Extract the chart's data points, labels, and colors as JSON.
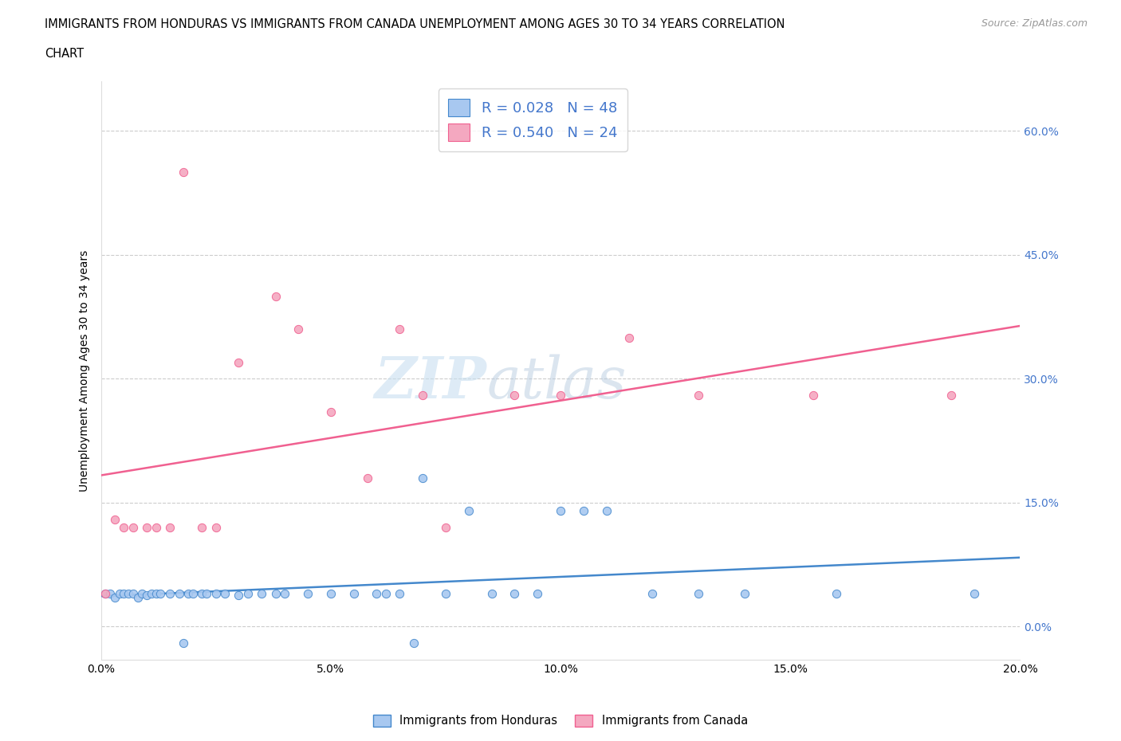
{
  "title_line1": "IMMIGRANTS FROM HONDURAS VS IMMIGRANTS FROM CANADA UNEMPLOYMENT AMONG AGES 30 TO 34 YEARS CORRELATION",
  "title_line2": "CHART",
  "source": "Source: ZipAtlas.com",
  "ylabel": "Unemployment Among Ages 30 to 34 years",
  "xlim": [
    0.0,
    0.2
  ],
  "ylim": [
    -0.04,
    0.66
  ],
  "xticks": [
    0.0,
    0.05,
    0.1,
    0.15,
    0.2
  ],
  "xtick_labels": [
    "0.0%",
    "5.0%",
    "10.0%",
    "15.0%",
    "20.0%"
  ],
  "yticks": [
    0.0,
    0.15,
    0.3,
    0.45,
    0.6
  ],
  "ytick_labels": [
    "0.0%",
    "15.0%",
    "30.0%",
    "45.0%",
    "60.0%"
  ],
  "watermark_ZIP": "ZIP",
  "watermark_atlas": "atlas",
  "legend_label1": "Immigrants from Honduras",
  "legend_label2": "Immigrants from Canada",
  "R1": "0.028",
  "N1": "48",
  "R2": "0.540",
  "N2": "24",
  "color_honduras": "#a8c8f0",
  "color_canada": "#f4a8c0",
  "color_trend_honduras": "#4488cc",
  "color_trend_canada": "#f06090",
  "color_blue_text": "#4477cc",
  "background_color": "#ffffff",
  "grid_color": "#cccccc",
  "honduras_x": [
    0.001,
    0.002,
    0.003,
    0.004,
    0.005,
    0.006,
    0.007,
    0.008,
    0.009,
    0.01,
    0.011,
    0.012,
    0.013,
    0.015,
    0.017,
    0.018,
    0.019,
    0.02,
    0.022,
    0.023,
    0.025,
    0.027,
    0.03,
    0.032,
    0.035,
    0.038,
    0.04,
    0.045,
    0.05,
    0.055,
    0.06,
    0.062,
    0.065,
    0.068,
    0.07,
    0.075,
    0.08,
    0.085,
    0.09,
    0.095,
    0.1,
    0.105,
    0.11,
    0.12,
    0.13,
    0.14,
    0.16,
    0.19
  ],
  "honduras_y": [
    0.04,
    0.04,
    0.035,
    0.04,
    0.04,
    0.04,
    0.04,
    0.035,
    0.04,
    0.038,
    0.04,
    0.04,
    0.04,
    0.04,
    0.04,
    -0.02,
    0.04,
    0.04,
    0.04,
    0.04,
    0.04,
    0.04,
    0.038,
    0.04,
    0.04,
    0.04,
    0.04,
    0.04,
    0.04,
    0.04,
    0.04,
    0.04,
    0.04,
    -0.02,
    0.18,
    0.04,
    0.14,
    0.04,
    0.04,
    0.04,
    0.14,
    0.14,
    0.14,
    0.04,
    0.04,
    0.04,
    0.04,
    0.04
  ],
  "canada_x": [
    0.001,
    0.003,
    0.005,
    0.007,
    0.01,
    0.012,
    0.015,
    0.018,
    0.022,
    0.025,
    0.03,
    0.038,
    0.043,
    0.05,
    0.058,
    0.065,
    0.07,
    0.075,
    0.09,
    0.1,
    0.115,
    0.13,
    0.155,
    0.185
  ],
  "canada_y": [
    0.04,
    0.13,
    0.12,
    0.12,
    0.12,
    0.12,
    0.12,
    0.55,
    0.12,
    0.12,
    0.32,
    0.4,
    0.36,
    0.26,
    0.18,
    0.36,
    0.28,
    0.12,
    0.28,
    0.28,
    0.35,
    0.28,
    0.28,
    0.28
  ]
}
